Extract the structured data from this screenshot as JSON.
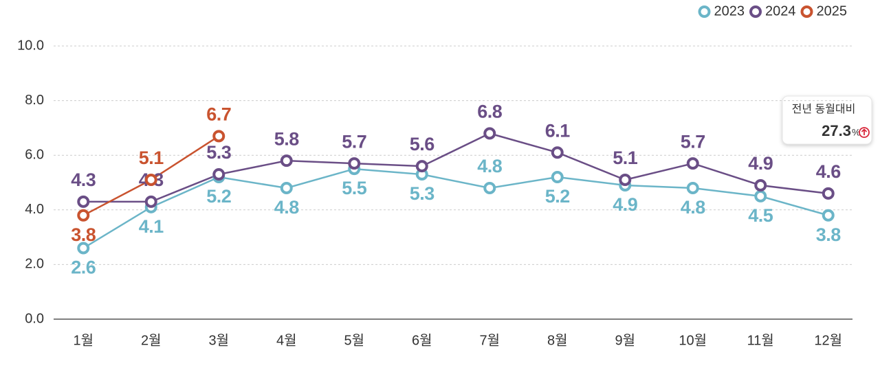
{
  "chart_data": {
    "type": "line",
    "categories": [
      "1월",
      "2월",
      "3월",
      "4월",
      "5월",
      "6월",
      "7월",
      "8월",
      "9월",
      "10월",
      "11월",
      "12월"
    ],
    "series": [
      {
        "name": "2023",
        "color": "#6bb5c8",
        "values": [
          2.6,
          4.1,
          5.2,
          4.8,
          5.5,
          5.3,
          4.8,
          5.2,
          4.9,
          4.8,
          4.5,
          3.8
        ]
      },
      {
        "name": "2024",
        "color": "#6a4e86",
        "values": [
          4.3,
          4.3,
          5.3,
          5.8,
          5.7,
          5.6,
          6.8,
          6.1,
          5.1,
          5.7,
          4.9,
          4.6
        ]
      },
      {
        "name": "2025",
        "color": "#c9532f",
        "values": [
          3.8,
          5.1,
          6.7,
          null,
          null,
          null,
          null,
          null,
          null,
          null,
          null,
          null
        ]
      }
    ],
    "ylim": [
      0,
      10
    ],
    "yticks": [
      {
        "value": 0,
        "label": "0.0"
      },
      {
        "value": 2,
        "label": "2.0"
      },
      {
        "value": 4,
        "label": "4.0"
      },
      {
        "value": 6,
        "label": "6.0"
      },
      {
        "value": 8,
        "label": "8.0"
      },
      {
        "value": 10,
        "label": "10.0"
      }
    ],
    "grid": true,
    "legend": "top-right",
    "annotation": {
      "title": "전년 동월대비",
      "value": "27.3",
      "unit": "%"
    }
  }
}
